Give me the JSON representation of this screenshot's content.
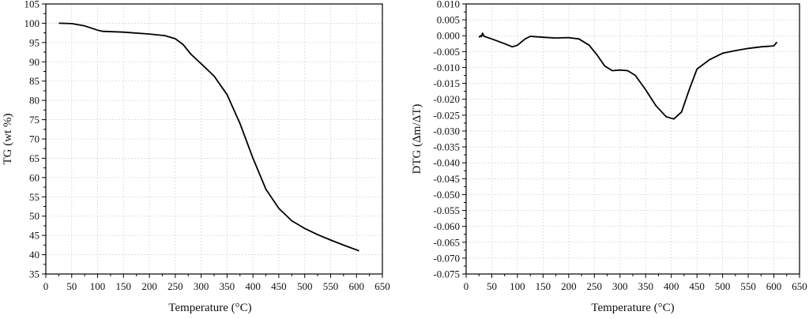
{
  "chart_data": [
    {
      "type": "line",
      "title": "",
      "xlabel": "Temperature (°C)",
      "ylabel": "TG (wt %)",
      "xlim": [
        0,
        650
      ],
      "ylim": [
        35,
        105
      ],
      "xticks": [
        0,
        50,
        100,
        150,
        200,
        250,
        300,
        350,
        400,
        450,
        500,
        550,
        600,
        650
      ],
      "yticks": [
        35,
        40,
        45,
        50,
        55,
        60,
        65,
        70,
        75,
        80,
        85,
        90,
        95,
        100,
        105
      ],
      "grid": true,
      "line_color": "#000000",
      "series": [
        {
          "x": [
            25,
            50,
            75,
            100,
            110,
            150,
            200,
            230,
            250,
            265,
            280,
            300,
            325,
            350,
            375,
            400,
            425,
            450,
            475,
            500,
            525,
            550,
            575,
            605
          ],
          "y": [
            100,
            99.9,
            99.3,
            98.2,
            97.9,
            97.7,
            97.2,
            96.8,
            96,
            94.5,
            92,
            89.5,
            86.3,
            81.5,
            74,
            65,
            57,
            52,
            48.8,
            46.8,
            45.2,
            43.8,
            42.5,
            41
          ]
        }
      ]
    },
    {
      "type": "line",
      "title": "",
      "xlabel": "Temperature (°C)",
      "ylabel": "DTG (Δm/ΔT)",
      "xlim": [
        0,
        650
      ],
      "ylim": [
        -0.075,
        0.01
      ],
      "xticks": [
        0,
        50,
        100,
        150,
        200,
        250,
        300,
        350,
        400,
        450,
        500,
        550,
        600,
        650
      ],
      "yticks": [
        0.01,
        0.005,
        0.0,
        -0.005,
        -0.01,
        -0.015,
        -0.02,
        -0.025,
        -0.03,
        -0.035,
        -0.04,
        -0.045,
        -0.05,
        -0.055,
        -0.06,
        -0.065,
        -0.07,
        -0.075
      ],
      "grid": true,
      "line_color": "#000000",
      "series": [
        {
          "x": [
            25,
            28,
            30,
            32,
            35,
            50,
            75,
            90,
            100,
            115,
            125,
            150,
            175,
            200,
            220,
            240,
            255,
            270,
            285,
            300,
            315,
            330,
            350,
            370,
            390,
            405,
            420,
            435,
            450,
            475,
            500,
            525,
            550,
            575,
            600,
            606
          ],
          "y": [
            -0.0005,
            0,
            -0.0003,
            0.0008,
            -0.0002,
            -0.001,
            -0.0025,
            -0.0035,
            -0.003,
            -0.001,
            -0.0002,
            -0.0005,
            -0.0007,
            -0.0006,
            -0.001,
            -0.003,
            -0.006,
            -0.0095,
            -0.011,
            -0.0108,
            -0.011,
            -0.0125,
            -0.017,
            -0.022,
            -0.0255,
            -0.0262,
            -0.024,
            -0.017,
            -0.0105,
            -0.0075,
            -0.0055,
            -0.0047,
            -0.004,
            -0.0035,
            -0.0032,
            -0.002
          ]
        }
      ]
    }
  ]
}
